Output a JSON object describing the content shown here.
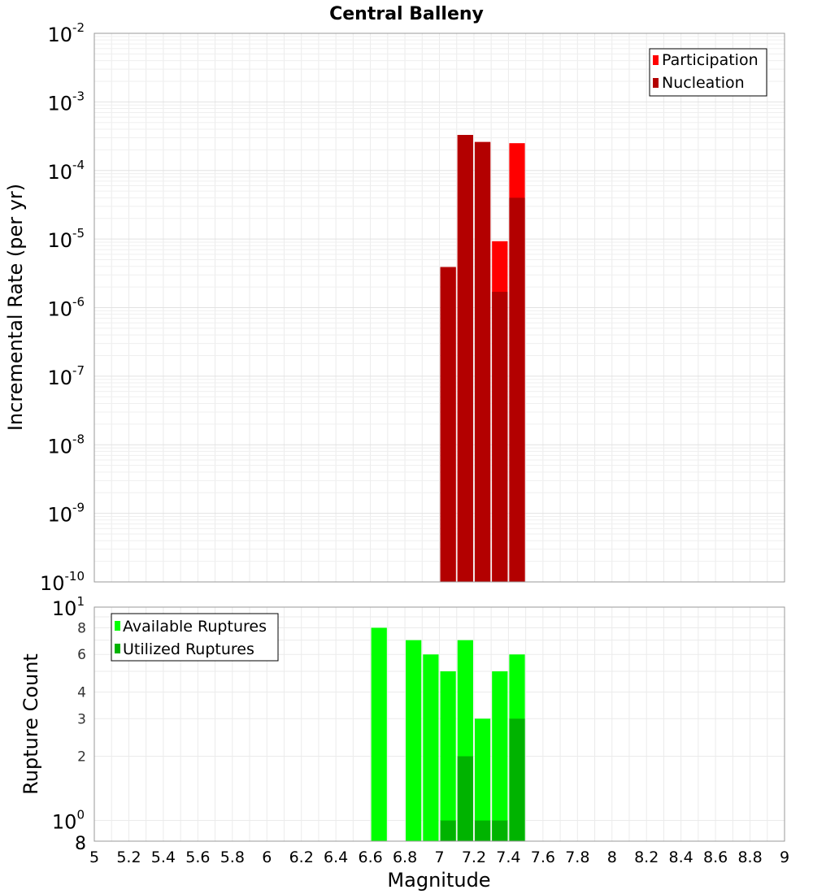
{
  "title": "Central Balleny",
  "chart_data": [
    {
      "type": "bar",
      "scale": "log",
      "title": "Central Balleny",
      "xlabel": "Magnitude",
      "ylabel": "Incremental Rate (per yr)",
      "xlim": [
        5,
        9
      ],
      "ylim": [
        1e-10,
        0.01
      ],
      "y_tick_exponents": [
        -10,
        -9,
        -8,
        -7,
        -6,
        -5,
        -4,
        -3,
        -2
      ],
      "y_tick_base": "10",
      "legend_position": "top-right",
      "bar_width": 0.1,
      "series": [
        {
          "name": "Participation",
          "color": "#ff0000",
          "points": [
            [
              7.05,
              3.9e-06
            ],
            [
              7.15,
              0.00033
            ],
            [
              7.25,
              0.00026
            ],
            [
              7.35,
              9.3e-06
            ],
            [
              7.45,
              0.00025
            ]
          ]
        },
        {
          "name": "Nucleation",
          "color": "#b30000",
          "points": [
            [
              7.05,
              3.9e-06
            ],
            [
              7.15,
              0.00033
            ],
            [
              7.25,
              0.00026
            ],
            [
              7.35,
              1.7e-06
            ],
            [
              7.45,
              4e-05
            ]
          ]
        }
      ]
    },
    {
      "type": "bar",
      "scale": "log",
      "xlabel": "Magnitude",
      "ylabel": "Rupture Count",
      "xlim": [
        5,
        9
      ],
      "ylim": [
        0.8,
        10
      ],
      "y_tick_labels": [
        {
          "value": 2,
          "label": "2"
        },
        {
          "value": 3,
          "label": "3"
        },
        {
          "value": 4,
          "label": "4"
        },
        {
          "value": 6,
          "label": "6"
        },
        {
          "value": 8,
          "label": "8"
        }
      ],
      "y_power_labels": [
        {
          "value": 1,
          "base": "10",
          "exp": "0"
        },
        {
          "value": 10,
          "base": "10",
          "exp": "1"
        }
      ],
      "y_bottom_label": "8",
      "x_ticks": [
        "5",
        "5.2",
        "5.4",
        "5.6",
        "5.8",
        "6",
        "6.2",
        "6.4",
        "6.6",
        "6.8",
        "7",
        "7.2",
        "7.4",
        "7.6",
        "7.8",
        "8",
        "8.2",
        "8.4",
        "8.6",
        "8.8",
        "9"
      ],
      "legend_position": "top-left",
      "bar_width": 0.1,
      "series": [
        {
          "name": "Available Ruptures",
          "color": "#00ff00",
          "points": [
            [
              6.65,
              8
            ],
            [
              6.85,
              7
            ],
            [
              6.95,
              6
            ],
            [
              7.05,
              5
            ],
            [
              7.15,
              7
            ],
            [
              7.25,
              3
            ],
            [
              7.35,
              5
            ],
            [
              7.45,
              6
            ]
          ]
        },
        {
          "name": "Utilized Ruptures",
          "color": "#00b300",
          "points": [
            [
              7.05,
              1
            ],
            [
              7.15,
              2
            ],
            [
              7.25,
              1
            ],
            [
              7.35,
              1
            ],
            [
              7.45,
              3
            ]
          ]
        }
      ]
    }
  ]
}
